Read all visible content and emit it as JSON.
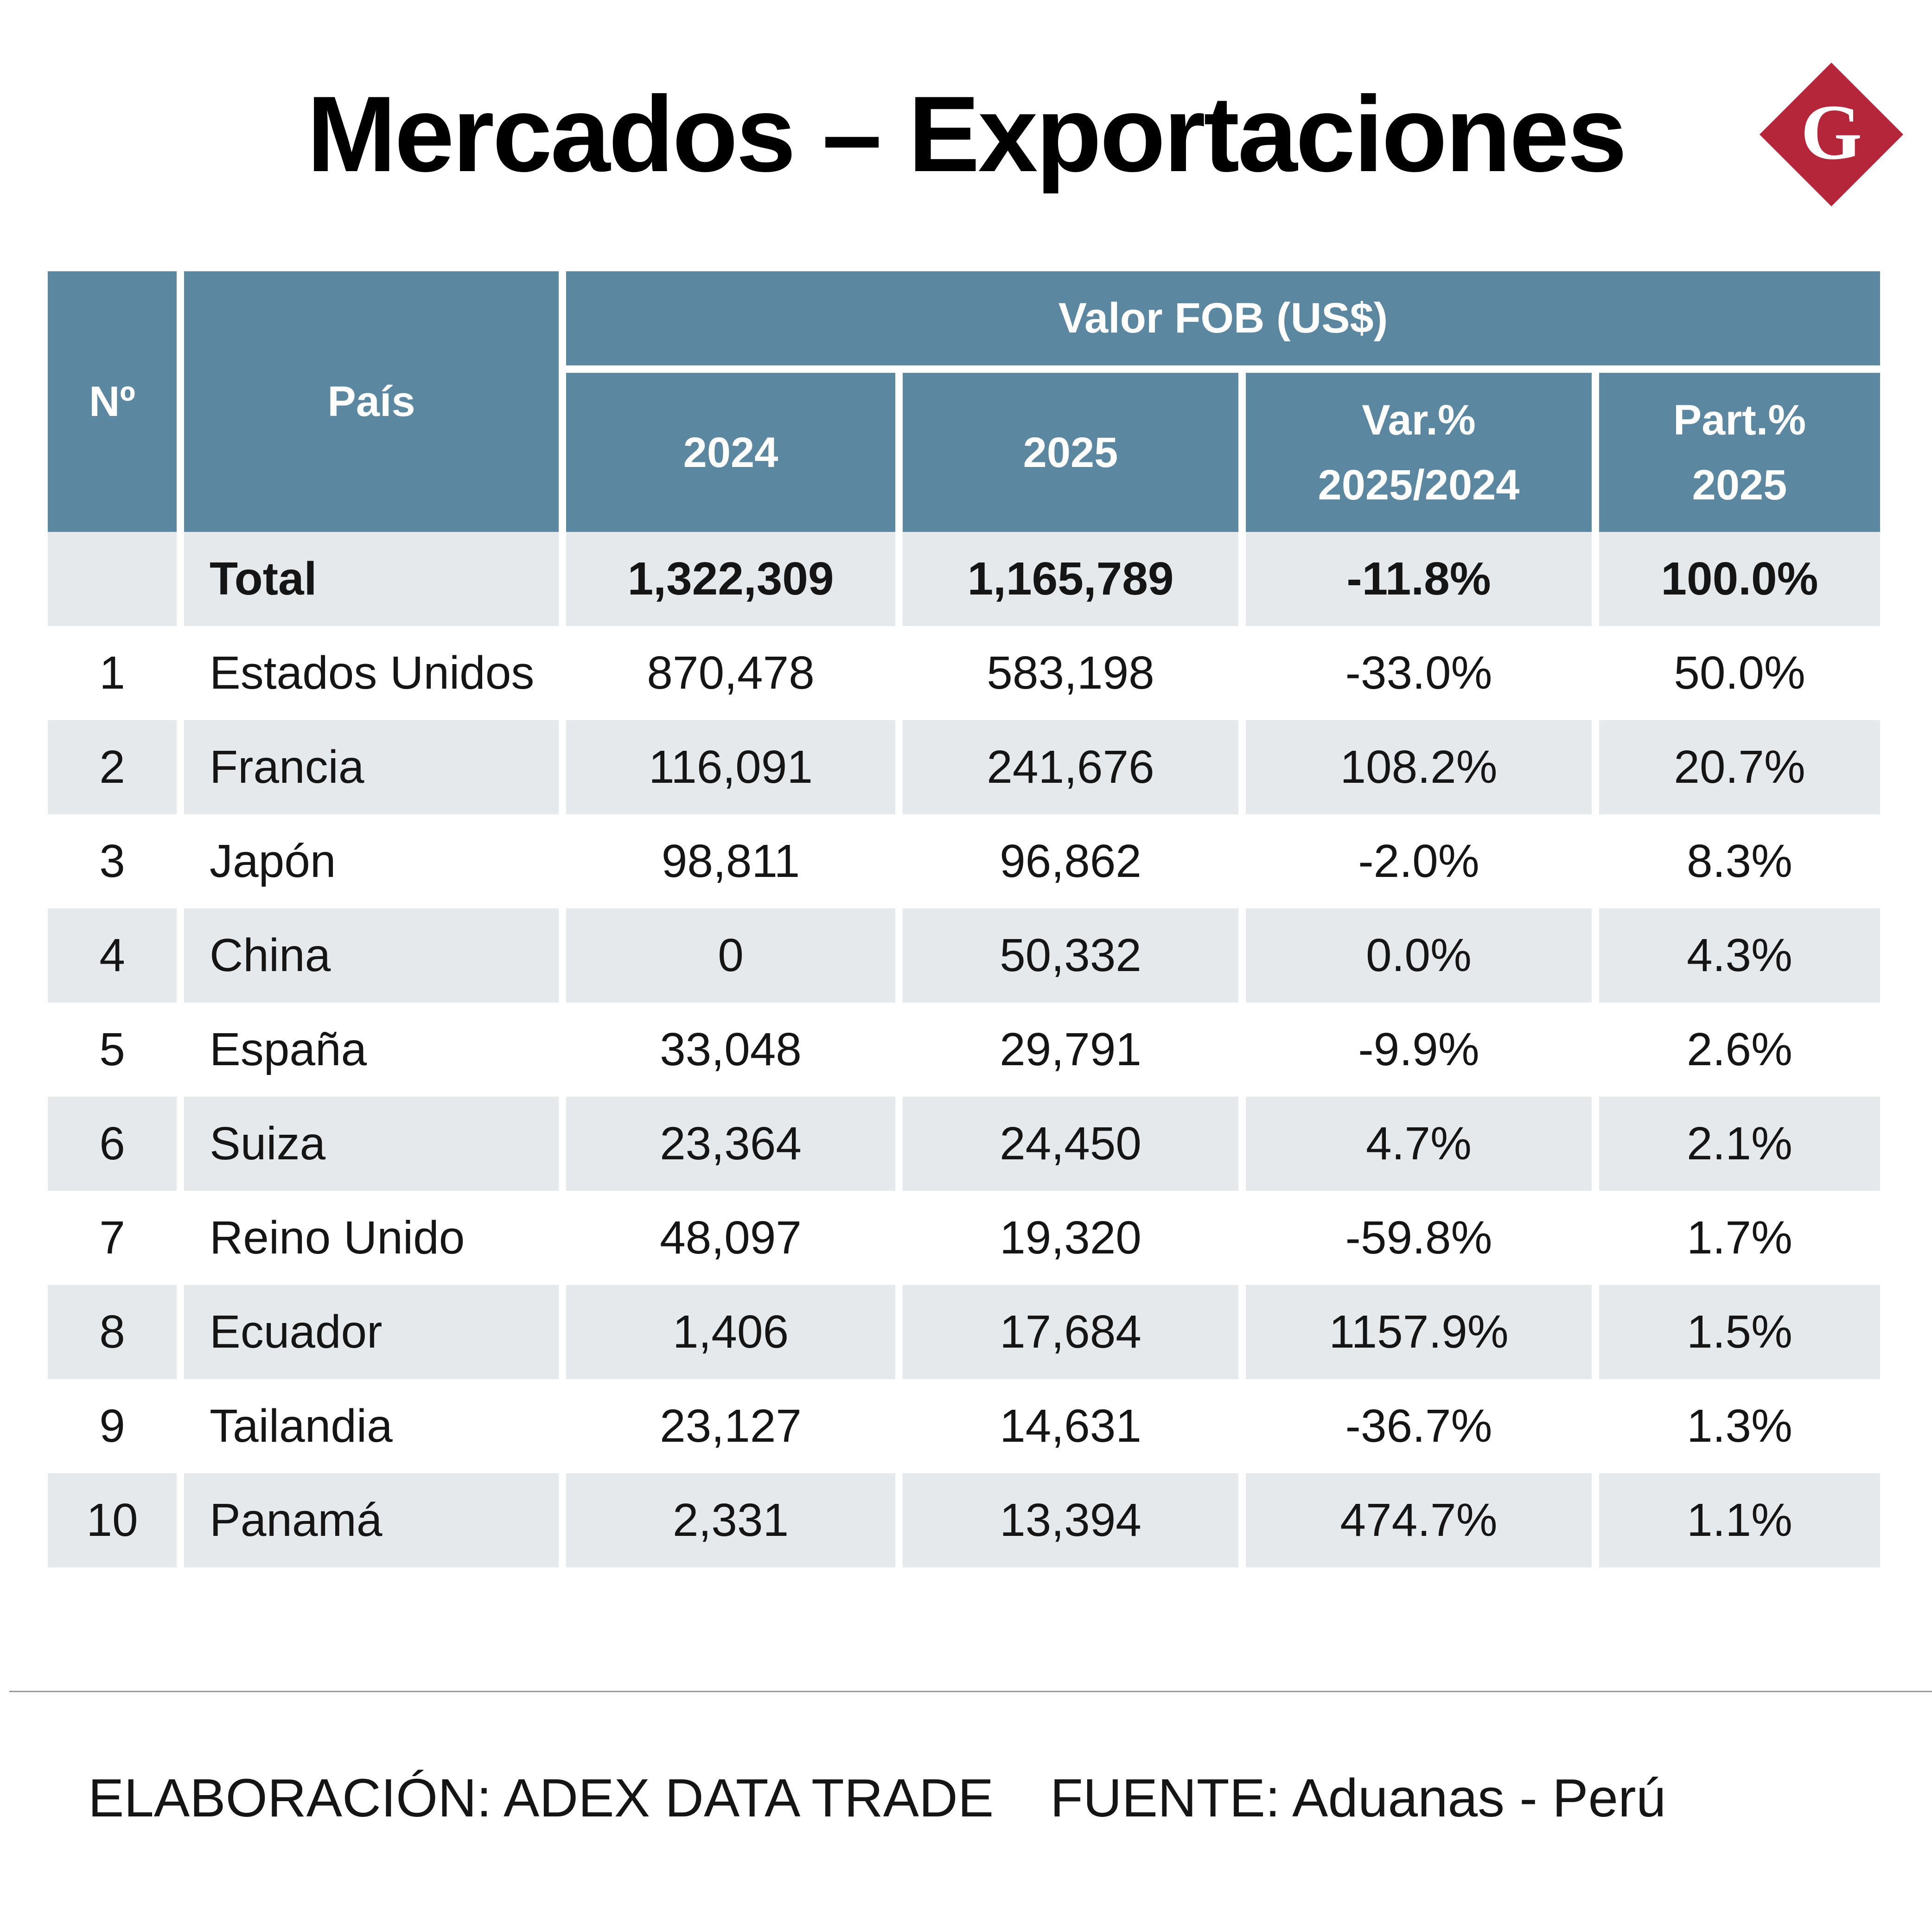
{
  "title": "Mercados – Exportaciones",
  "logo": {
    "letter": "G",
    "color": "#b5263a"
  },
  "colors": {
    "header_bg": "#5b87a1",
    "stripe_bg": "#e6e9ec"
  },
  "table": {
    "col_no": "Nº",
    "col_pais": "País",
    "group_header": "Valor FOB (US$)",
    "col_2024": "2024",
    "col_2025": "2025",
    "col_var_line1": "Var.%",
    "col_var_line2": "2025/2024",
    "col_part_line1": "Part.%",
    "col_part_line2": "2025",
    "total": {
      "no": "",
      "pais": "Total",
      "v2024": "1,322,309",
      "v2025": "1,165,789",
      "var": "-11.8%",
      "part": "100.0%"
    },
    "rows": [
      {
        "no": "1",
        "pais": "Estados Unidos",
        "v2024": "870,478",
        "v2025": "583,198",
        "var": "-33.0%",
        "part": "50.0%"
      },
      {
        "no": "2",
        "pais": "Francia",
        "v2024": "116,091",
        "v2025": "241,676",
        "var": "108.2%",
        "part": "20.7%"
      },
      {
        "no": "3",
        "pais": "Japón",
        "v2024": "98,811",
        "v2025": "96,862",
        "var": "-2.0%",
        "part": "8.3%"
      },
      {
        "no": "4",
        "pais": "China",
        "v2024": "0",
        "v2025": "50,332",
        "var": "0.0%",
        "part": "4.3%"
      },
      {
        "no": "5",
        "pais": "España",
        "v2024": "33,048",
        "v2025": "29,791",
        "var": "-9.9%",
        "part": "2.6%"
      },
      {
        "no": "6",
        "pais": "Suiza",
        "v2024": "23,364",
        "v2025": "24,450",
        "var": "4.7%",
        "part": "2.1%"
      },
      {
        "no": "7",
        "pais": "Reino Unido",
        "v2024": "48,097",
        "v2025": "19,320",
        "var": "-59.8%",
        "part": "1.7%"
      },
      {
        "no": "8",
        "pais": "Ecuador",
        "v2024": "1,406",
        "v2025": "17,684",
        "var": "1157.9%",
        "part": "1.5%"
      },
      {
        "no": "9",
        "pais": "Tailandia",
        "v2024": "23,127",
        "v2025": "14,631",
        "var": "-36.7%",
        "part": "1.3%"
      },
      {
        "no": "10",
        "pais": "Panamá",
        "v2024": "2,331",
        "v2025": "13,394",
        "var": "474.7%",
        "part": "1.1%"
      }
    ]
  },
  "footer": {
    "elaboracion": "ELABORACIÓN: ADEX DATA TRADE",
    "fuente": "FUENTE: Aduanas - Perú"
  },
  "chart_data": {
    "type": "table",
    "title": "Mercados – Exportaciones",
    "columns": [
      "Nº",
      "País",
      "2024",
      "2025",
      "Var.% 2025/2024",
      "Part.% 2025"
    ],
    "group_header": "Valor FOB (US$)",
    "total": {
      "pais": "Total",
      "v2024": 1322309,
      "v2025": 1165789,
      "var_pct": -11.8,
      "part_pct": 100.0
    },
    "rows": [
      {
        "no": 1,
        "pais": "Estados Unidos",
        "v2024": 870478,
        "v2025": 583198,
        "var_pct": -33.0,
        "part_pct": 50.0
      },
      {
        "no": 2,
        "pais": "Francia",
        "v2024": 116091,
        "v2025": 241676,
        "var_pct": 108.2,
        "part_pct": 20.7
      },
      {
        "no": 3,
        "pais": "Japón",
        "v2024": 98811,
        "v2025": 96862,
        "var_pct": -2.0,
        "part_pct": 8.3
      },
      {
        "no": 4,
        "pais": "China",
        "v2024": 0,
        "v2025": 50332,
        "var_pct": 0.0,
        "part_pct": 4.3
      },
      {
        "no": 5,
        "pais": "España",
        "v2024": 33048,
        "v2025": 29791,
        "var_pct": -9.9,
        "part_pct": 2.6
      },
      {
        "no": 6,
        "pais": "Suiza",
        "v2024": 23364,
        "v2025": 24450,
        "var_pct": 4.7,
        "part_pct": 2.1
      },
      {
        "no": 7,
        "pais": "Reino Unido",
        "v2024": 48097,
        "v2025": 19320,
        "var_pct": -59.8,
        "part_pct": 1.7
      },
      {
        "no": 8,
        "pais": "Ecuador",
        "v2024": 1406,
        "v2025": 17684,
        "var_pct": 1157.9,
        "part_pct": 1.5
      },
      {
        "no": 9,
        "pais": "Tailandia",
        "v2024": 23127,
        "v2025": 14631,
        "var_pct": -36.7,
        "part_pct": 1.3
      },
      {
        "no": 10,
        "pais": "Panamá",
        "v2024": 2331,
        "v2025": 13394,
        "var_pct": 474.7,
        "part_pct": 1.1
      }
    ]
  }
}
